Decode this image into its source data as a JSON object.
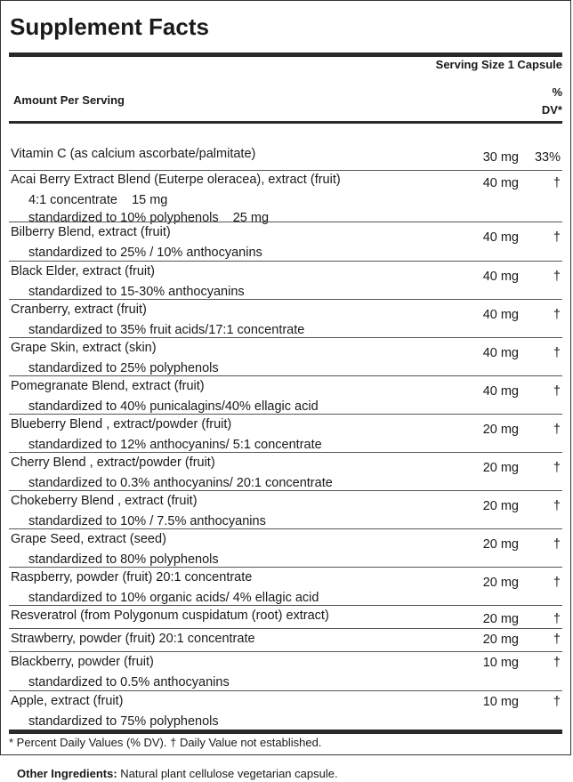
{
  "title": "Supplement Facts",
  "serving_size": "Serving Size 1 Capsule",
  "amount_per_serving": "Amount Per Serving",
  "dv_header": [
    "%",
    "DV*"
  ],
  "rows": [
    {
      "name": "Vitamin C (as calcium ascorbate/palmitate)",
      "amount": "30 mg",
      "dv": "33%",
      "sub": []
    },
    {
      "name": "Acai Berry Extract Blend (Euterpe oleracea), extract (fruit)",
      "amount": "40 mg",
      "dv": "†",
      "sub": [
        "4:1 concentrate    15 mg",
        "standardized to 10% polyphenols    25 mg"
      ]
    },
    {
      "name": "Bilberry Blend, extract (fruit)",
      "amount": "40 mg",
      "dv": "†",
      "sub": [
        "standardized to 25% / 10% anthocyanins"
      ]
    },
    {
      "name": "Black Elder, extract (fruit)",
      "amount": "40 mg",
      "dv": "†",
      "sub": [
        "standardized to 15-30% anthocyanins"
      ]
    },
    {
      "name": "Cranberry, extract (fruit)",
      "amount": "40 mg",
      "dv": "†",
      "sub": [
        "standardized to 35% fruit acids/17:1 concentrate"
      ]
    },
    {
      "name": "Grape Skin, extract (skin)",
      "amount": "40 mg",
      "dv": "†",
      "sub": [
        "standardized to 25% polyphenols"
      ]
    },
    {
      "name": "Pomegranate Blend, extract (fruit)",
      "amount": "40 mg",
      "dv": "†",
      "sub": [
        "standardized to 40% punicalagins/40% ellagic acid"
      ]
    },
    {
      "name": "Blueberry Blend , extract/powder (fruit)",
      "amount": "20 mg",
      "dv": "†",
      "sub": [
        "standardized to 12% anthocyanins/ 5:1 concentrate"
      ]
    },
    {
      "name": "Cherry Blend , extract/powder (fruit)",
      "amount": "20 mg",
      "dv": "†",
      "sub": [
        "standardized to 0.3% anthocyanins/ 20:1 concentrate"
      ]
    },
    {
      "name": "Chokeberry Blend , extract (fruit)",
      "amount": "20 mg",
      "dv": "†",
      "sub": [
        "standardized to 10% / 7.5% anthocyanins"
      ]
    },
    {
      "name": "Grape Seed, extract (seed)",
      "amount": "20 mg",
      "dv": "†",
      "sub": [
        "standardized to 80% polyphenols"
      ]
    },
    {
      "name": "Raspberry, powder (fruit) 20:1 concentrate",
      "amount": "20 mg",
      "dv": "†",
      "sub": [
        "standardized to 10% organic acids/ 4% ellagic acid"
      ]
    },
    {
      "name": "Resveratrol (from Polygonum cuspidatum (root) extract)",
      "amount": "20 mg",
      "dv": "†",
      "sub": []
    },
    {
      "name": "Strawberry, powder (fruit) 20:1 concentrate",
      "amount": "20 mg",
      "dv": "†",
      "sub": []
    },
    {
      "name": "Blackberry, powder (fruit)",
      "amount": "10 mg",
      "dv": "†",
      "sub": [
        "standardized to 0.5% anthocyanins"
      ]
    },
    {
      "name": "Apple, extract (fruit)",
      "amount": "10 mg",
      "dv": "†",
      "sub": [
        "standardized to 75% polyphenols"
      ]
    }
  ],
  "footnote": "* Percent Daily Values (% DV). † Daily Value not established.",
  "other_ingredients_label": "Other Ingredients:",
  "other_ingredients_text": " Natural plant cellulose vegetarian capsule."
}
